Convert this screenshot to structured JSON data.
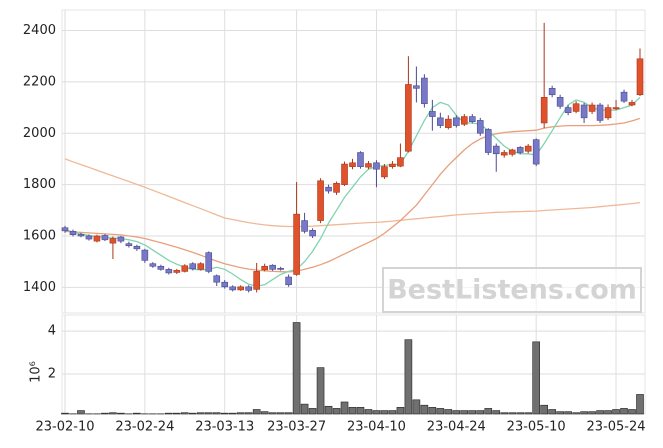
{
  "chart_data": {
    "type": "candlestick",
    "categories": [
      "23-02-10",
      null,
      null,
      null,
      null,
      null,
      null,
      null,
      null,
      null,
      "23-02-24",
      null,
      null,
      null,
      null,
      null,
      null,
      null,
      null,
      null,
      "23-03-13",
      null,
      null,
      null,
      null,
      null,
      null,
      null,
      null,
      "23-03-27",
      null,
      null,
      null,
      null,
      null,
      null,
      null,
      null,
      null,
      "23-04-10",
      null,
      null,
      null,
      null,
      null,
      null,
      null,
      null,
      null,
      "23-04-24",
      null,
      null,
      null,
      null,
      null,
      null,
      null,
      null,
      null,
      "23-05-10",
      null,
      null,
      null,
      null,
      null,
      null,
      null,
      null,
      null,
      "23-05-24",
      null,
      null,
      null
    ],
    "open": [
      1632,
      1618,
      1606,
      1600,
      1580,
      1602,
      1572,
      1596,
      1570,
      1560,
      1545,
      1492,
      1482,
      1470,
      1458,
      1462,
      1492,
      1470,
      1535,
      1445,
      1420,
      1402,
      1390,
      1402,
      1392,
      1468,
      1486,
      1474,
      1440,
      1450,
      1660,
      1622,
      1660,
      1790,
      1770,
      1800,
      1870,
      1925,
      1868,
      1885,
      1830,
      1870,
      1872,
      1930,
      2185,
      2215,
      2085,
      2060,
      2022,
      2060,
      2035,
      2065,
      2050,
      2015,
      1950,
      1915,
      1918,
      1945,
      1930,
      1975,
      2040,
      2175,
      2140,
      2100,
      2085,
      2110,
      2085,
      2110,
      2060,
      2095,
      2160,
      2110,
      2150
    ],
    "high": [
      1640,
      1625,
      1612,
      1606,
      1605,
      1608,
      1598,
      1600,
      1578,
      1566,
      1550,
      1498,
      1488,
      1476,
      1472,
      1490,
      1498,
      1498,
      1540,
      1450,
      1428,
      1408,
      1408,
      1408,
      1495,
      1492,
      1490,
      1480,
      1450,
      1810,
      1690,
      1630,
      1825,
      1800,
      1812,
      1890,
      1900,
      1930,
      1892,
      1895,
      1880,
      1892,
      1960,
      2300,
      2260,
      2230,
      2130,
      2080,
      2070,
      2070,
      2075,
      2075,
      2060,
      2020,
      1960,
      1935,
      1940,
      1950,
      1958,
      1980,
      2430,
      2185,
      2150,
      2110,
      2125,
      2118,
      2120,
      2118,
      2112,
      2130,
      2170,
      2130,
      2330
    ],
    "low": [
      1612,
      1598,
      1595,
      1582,
      1575,
      1580,
      1510,
      1572,
      1555,
      1542,
      1495,
      1476,
      1465,
      1450,
      1452,
      1458,
      1466,
      1465,
      1455,
      1405,
      1395,
      1384,
      1386,
      1380,
      1380,
      1462,
      1464,
      1465,
      1402,
      1445,
      1610,
      1592,
      1650,
      1765,
      1760,
      1795,
      1860,
      1862,
      1860,
      1790,
      1822,
      1862,
      1868,
      1925,
      2120,
      2100,
      2010,
      2020,
      2015,
      2022,
      2028,
      2038,
      1990,
      1915,
      1850,
      1905,
      1910,
      1918,
      1922,
      1872,
      2020,
      2140,
      2095,
      2070,
      2078,
      2040,
      2075,
      2040,
      2052,
      2090,
      2118,
      2105,
      2145
    ],
    "close": [
      1620,
      1605,
      1600,
      1588,
      1600,
      1585,
      1590,
      1580,
      1562,
      1550,
      1505,
      1482,
      1470,
      1456,
      1466,
      1484,
      1472,
      1492,
      1462,
      1420,
      1402,
      1390,
      1402,
      1388,
      1462,
      1482,
      1470,
      1470,
      1410,
      1685,
      1618,
      1600,
      1815,
      1775,
      1805,
      1880,
      1885,
      1870,
      1882,
      1860,
      1870,
      1880,
      1905,
      2190,
      2175,
      2115,
      2065,
      2030,
      2055,
      2030,
      2065,
      2045,
      2000,
      1925,
      1920,
      1925,
      1935,
      1925,
      1950,
      1880,
      2140,
      2150,
      2105,
      2080,
      2115,
      2060,
      2110,
      2050,
      2100,
      2100,
      2125,
      2120,
      2290
    ],
    "up_color": "#e0522b",
    "down_color": "#7878c8",
    "ylim": [
      1300,
      2480
    ],
    "yticks": [
      1400,
      1600,
      1800,
      2000,
      2200,
      2400
    ],
    "grid": true,
    "lines": [
      {
        "color": "#f0b898",
        "values": [
          1900,
          1889,
          1878,
          1867,
          1856,
          1845,
          1834,
          1823,
          1812,
          1801,
          1790,
          1778,
          1766,
          1754,
          1742,
          1730,
          1718,
          1706,
          1694,
          1682,
          1670,
          1664,
          1658,
          1652,
          1647,
          1643,
          1640,
          1638,
          1637,
          1637,
          1637,
          1638,
          1640,
          1642,
          1644,
          1646,
          1648,
          1650,
          1652,
          1653,
          1655,
          1658,
          1661,
          1664,
          1667,
          1670,
          1673,
          1676,
          1679,
          1682,
          1684,
          1686,
          1688,
          1690,
          1692,
          1693,
          1694,
          1695,
          1696,
          1697,
          1699,
          1701,
          1703,
          1705,
          1707,
          1709,
          1711,
          1714,
          1717,
          1720,
          1723,
          1726,
          1730
        ]
      },
      {
        "color": "#e8a07a",
        "values": [
          1618,
          1616,
          1614,
          1612,
          1610,
          1608,
          1606,
          1604,
          1600,
          1596,
          1590,
          1582,
          1574,
          1565,
          1556,
          1546,
          1536,
          1525,
          1513,
          1502,
          1492,
          1484,
          1477,
          1471,
          1467,
          1464,
          1462,
          1461,
          1460,
          1462,
          1470,
          1478,
          1488,
          1500,
          1515,
          1530,
          1545,
          1560,
          1575,
          1590,
          1610,
          1635,
          1660,
          1690,
          1720,
          1760,
          1800,
          1840,
          1875,
          1905,
          1935,
          1960,
          1978,
          1990,
          1998,
          2003,
          2006,
          2008,
          2010,
          2012,
          2020,
          2025,
          2028,
          2030,
          2030,
          2030,
          2030,
          2031,
          2033,
          2036,
          2040,
          2048,
          2058
        ]
      },
      {
        "color": "#7fd4b0",
        "values": [
          1625,
          1615,
          1608,
          1602,
          1598,
          1594,
          1592,
          1590,
          1585,
          1578,
          1565,
          1545,
          1525,
          1505,
          1490,
          1478,
          1470,
          1468,
          1470,
          1478,
          1470,
          1452,
          1430,
          1412,
          1405,
          1410,
          1430,
          1450,
          1462,
          1470,
          1500,
          1540,
          1590,
          1650,
          1700,
          1750,
          1790,
          1830,
          1860,
          1870,
          1875,
          1878,
          1880,
          1930,
          1990,
          2050,
          2100,
          2120,
          2110,
          2070,
          2040,
          2040,
          2035,
          2010,
          1980,
          1950,
          1930,
          1920,
          1920,
          1915,
          1960,
          2010,
          2060,
          2110,
          2130,
          2120,
          2100,
          2090,
          2090,
          2090,
          2100,
          2110,
          2140
        ]
      }
    ],
    "volume": {
      "color": "#707070",
      "ylabel": "10⁶",
      "ylim": [
        0.14,
        4.75
      ],
      "yticks": [
        2,
        4
      ],
      "values": [
        0.18,
        0.15,
        0.3,
        0.15,
        0.15,
        0.18,
        0.2,
        0.18,
        0.15,
        0.18,
        0.15,
        0.15,
        0.15,
        0.18,
        0.18,
        0.2,
        0.18,
        0.2,
        0.2,
        0.2,
        0.18,
        0.18,
        0.2,
        0.2,
        0.35,
        0.25,
        0.2,
        0.2,
        0.2,
        4.4,
        0.6,
        0.4,
        2.3,
        0.5,
        0.4,
        0.7,
        0.45,
        0.45,
        0.35,
        0.3,
        0.3,
        0.3,
        0.45,
        3.6,
        0.8,
        0.55,
        0.45,
        0.4,
        0.35,
        0.3,
        0.3,
        0.3,
        0.3,
        0.4,
        0.3,
        0.2,
        0.2,
        0.2,
        0.2,
        3.5,
        0.55,
        0.35,
        0.25,
        0.25,
        0.2,
        0.25,
        0.25,
        0.3,
        0.3,
        0.35,
        0.4,
        0.35,
        1.05
      ]
    },
    "watermark": "BestListens.com"
  }
}
